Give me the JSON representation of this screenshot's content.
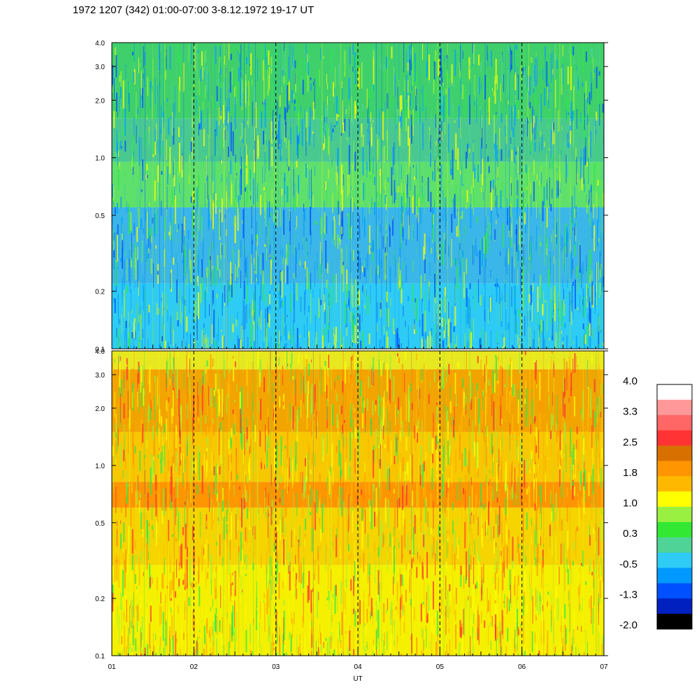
{
  "title": "1972 1207 (342) 01:00-07:00 3-8.12.1972  19-17 UT",
  "chart_data": [
    {
      "type": "heatmap",
      "name": "upper-panel",
      "title": "",
      "xlabel": "",
      "ylabel": "",
      "x_ticks": [
        "01",
        "02",
        "03",
        "04",
        "05",
        "06",
        "07"
      ],
      "xlim": [
        1,
        7
      ],
      "y_scale": "log",
      "ylim": [
        0.1,
        4.0
      ],
      "y_ticks": [
        {
          "value": 0.1,
          "label": "0.1"
        },
        {
          "value": 0.2,
          "label": "0.2"
        },
        {
          "value": 0.5,
          "label": "0.5"
        },
        {
          "value": 1.0,
          "label": "1.0"
        },
        {
          "value": 2.0,
          "label": "2.0"
        },
        {
          "value": 3.0,
          "label": "3.0"
        },
        {
          "value": 4.0,
          "label": "4.0"
        }
      ],
      "dashed_vlines": [
        2,
        3,
        4,
        5,
        6
      ],
      "bands": [
        {
          "from": 0.1,
          "to": 0.22,
          "color": "#2ecbf5"
        },
        {
          "from": 0.22,
          "to": 0.55,
          "color": "#3bb6e8"
        },
        {
          "from": 0.55,
          "to": 0.95,
          "color": "#5fe06a"
        },
        {
          "from": 0.95,
          "to": 1.6,
          "color": "#49c98f"
        },
        {
          "from": 1.6,
          "to": 4.0,
          "color": "#3fd06c"
        }
      ],
      "speckle_colors": [
        "#1a9cf0",
        "#0050ff",
        "#9aef3a",
        "#2ee84a",
        "#4fd396",
        "#00a0ff",
        "#ffff00"
      ]
    },
    {
      "type": "heatmap",
      "name": "lower-panel",
      "title": "",
      "xlabel": "UT",
      "ylabel": "",
      "x_ticks": [
        "01",
        "02",
        "03",
        "04",
        "05",
        "06",
        "07"
      ],
      "xlim": [
        1,
        7
      ],
      "y_scale": "log",
      "ylim": [
        0.1,
        4.0
      ],
      "y_ticks": [
        {
          "value": 0.1,
          "label": "0.1"
        },
        {
          "value": 0.2,
          "label": "0.2"
        },
        {
          "value": 0.5,
          "label": "0.5"
        },
        {
          "value": 1.0,
          "label": "1.0"
        },
        {
          "value": 2.0,
          "label": "2.0"
        },
        {
          "value": 3.0,
          "label": "3.0"
        },
        {
          "value": 4.0,
          "label": "4.0"
        }
      ],
      "dashed_vlines": [
        2,
        3,
        4,
        5,
        6
      ],
      "bands": [
        {
          "from": 0.1,
          "to": 0.3,
          "color": "#f4f000"
        },
        {
          "from": 0.3,
          "to": 0.6,
          "color": "#f5d400"
        },
        {
          "from": 0.6,
          "to": 0.82,
          "color": "#ff9500"
        },
        {
          "from": 0.82,
          "to": 1.5,
          "color": "#f7c800"
        },
        {
          "from": 1.5,
          "to": 3.2,
          "color": "#f2a400"
        },
        {
          "from": 3.2,
          "to": 4.0,
          "color": "#e8e820"
        }
      ],
      "speckle_colors": [
        "#ffff00",
        "#9aef3a",
        "#2ee84a",
        "#ff9500",
        "#ffb800",
        "#ff3030"
      ]
    }
  ],
  "colorbar": {
    "labels": [
      "4.0",
      "3.3",
      "2.5",
      "1.8",
      "1.0",
      "0.3",
      "-0.5",
      "-1.3",
      "-2.0"
    ],
    "colors": [
      "#ffffff",
      "#ff9999",
      "#ff6666",
      "#ff3333",
      "#d87000",
      "#ff9500",
      "#ffb800",
      "#ffff00",
      "#99f040",
      "#33e833",
      "#4fd396",
      "#2ecbf5",
      "#0099ff",
      "#0050ff",
      "#0020c0",
      "#000000"
    ]
  }
}
